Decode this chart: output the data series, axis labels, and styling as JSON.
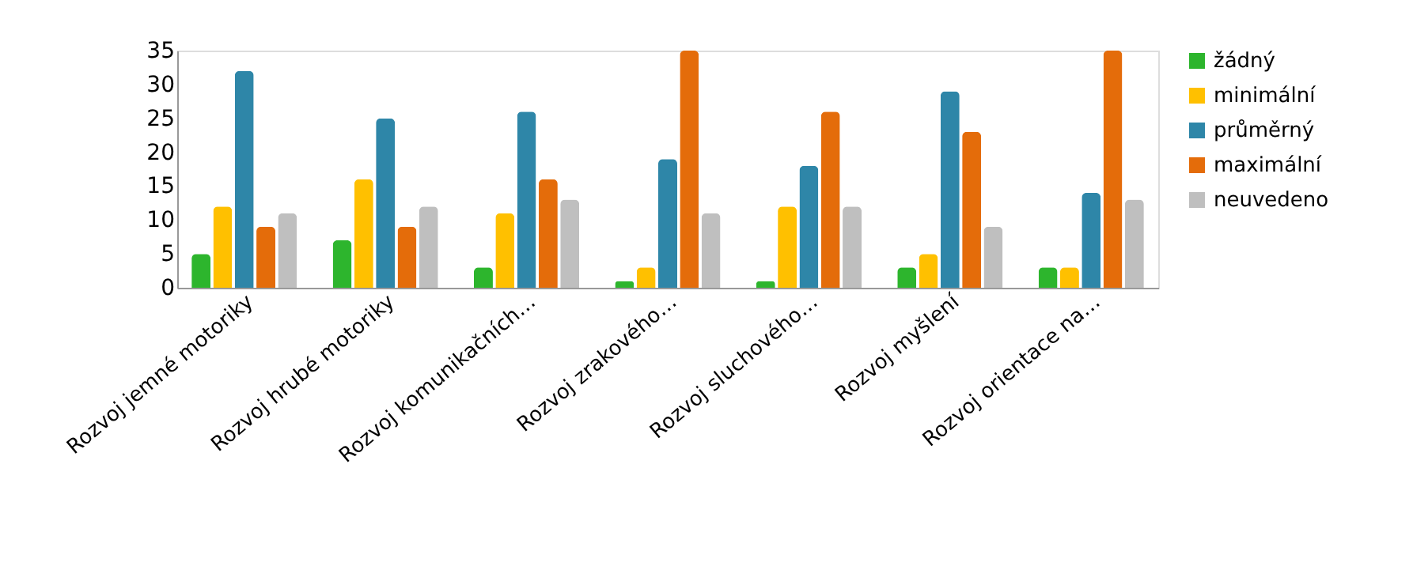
{
  "chart_data": {
    "type": "bar",
    "categories": [
      "Rozvoj jemné motoriky",
      "Rozvoj hrubé motoriky",
      "Rozvoj komunikačních…",
      "Rozvoj zrakového…",
      "Rozvoj sluchového…",
      "Rozvoj myšlení",
      "Rozvoj orientace na…"
    ],
    "series": [
      {
        "name": "žádný",
        "color": "#2db52d",
        "values": [
          5,
          7,
          3,
          1,
          1,
          3,
          3
        ]
      },
      {
        "name": "minimální",
        "color": "#ffc000",
        "values": [
          12,
          16,
          11,
          3,
          12,
          5,
          3
        ]
      },
      {
        "name": "průměrný",
        "color": "#2e86a8",
        "values": [
          32,
          25,
          26,
          19,
          18,
          29,
          14
        ]
      },
      {
        "name": "maximální",
        "color": "#e46c0a",
        "values": [
          9,
          9,
          16,
          35,
          26,
          23,
          35
        ]
      },
      {
        "name": "neuvedeno",
        "color": "#bfbfbf",
        "values": [
          11,
          12,
          13,
          11,
          12,
          9,
          13
        ]
      }
    ],
    "ylim": [
      0,
      35
    ],
    "yticks": [
      0,
      5,
      10,
      15,
      20,
      25,
      30,
      35
    ],
    "grid": false,
    "legend": "right"
  }
}
